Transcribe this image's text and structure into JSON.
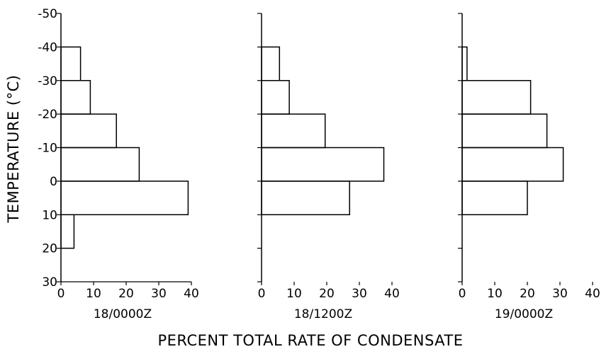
{
  "chart_data": {
    "type": "bar",
    "orientation": "horizontal",
    "ylabel": "TEMPERATURE (°C)",
    "xlabel": "PERCENT TOTAL RATE OF CONDENSATE",
    "y_ticks": [
      "-50",
      "-40",
      "-30",
      "-20",
      "-10",
      "0",
      "10",
      "20",
      "30"
    ],
    "x_ticks": [
      "0",
      "10",
      "20",
      "30",
      "40"
    ],
    "y_range": [
      -50,
      30
    ],
    "x_range": [
      0,
      40
    ],
    "bin_edges": [
      -40,
      -30,
      -20,
      -10,
      0,
      10,
      20
    ],
    "panels": [
      {
        "label": "18/0000Z",
        "values": [
          6,
          9,
          17,
          24,
          39,
          4
        ]
      },
      {
        "label": "18/1200Z",
        "values": [
          5.5,
          8.5,
          19.5,
          37.5,
          27,
          0
        ]
      },
      {
        "label": "19/0000Z",
        "values": [
          1.5,
          21,
          26,
          31,
          20,
          0
        ]
      }
    ]
  }
}
